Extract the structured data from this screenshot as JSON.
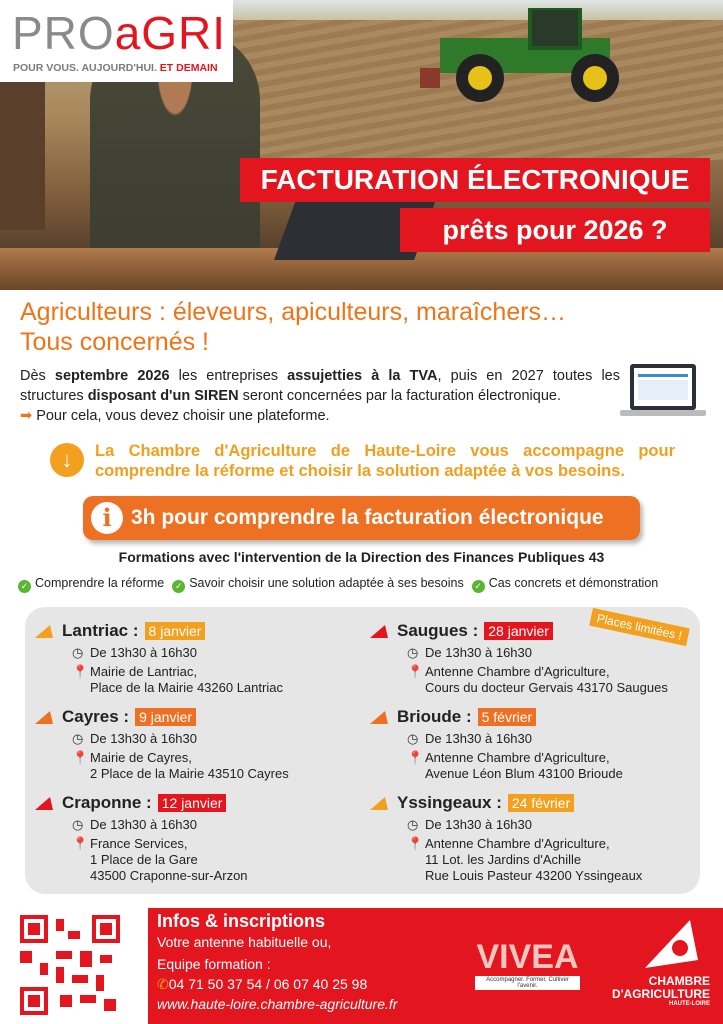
{
  "logo": {
    "brand_gray": "PRO",
    "brand_red": "aGRI",
    "tagline_gray": "POUR VOUS. AUJOURD'HUI.",
    "tagline_red": "ET DEMAIN"
  },
  "banner": {
    "line1": "FACTURATION ÉLECTRONIQUE",
    "line2": "prêts pour 2026 ?"
  },
  "heading": {
    "line1": "Agriculteurs : éleveurs, apiculteurs, maraîchers…",
    "line2": "Tous concernés !"
  },
  "intro": {
    "p1": "Dès ",
    "b1": "septembre 2026",
    "p2": " les entreprises ",
    "b2": "assujetties à la TVA",
    "p3": ", puis en 2027  toutes  les structures ",
    "b3": "disposant d'un SIREN",
    "p4": " seront concernées par la facturation électronique.",
    "p5": "Pour cela, vous devez choisir une plateforme."
  },
  "callout": "La Chambre d'Agriculture de Haute-Loire vous accompagne pour comprendre la réforme et choisir la solution adaptée à vos besoins.",
  "pill": "3h pour comprendre la facturation électronique",
  "formations": "Formations avec l'intervention de la Direction des Finances Publiques 43",
  "checks": [
    "Comprendre la réforme",
    "Savoir choisir une solution adaptée à ses besoins",
    "Cas concrets et démonstration"
  ],
  "places": "Places limitées !",
  "sessions": [
    {
      "town": "Lantriac :",
      "date": "8 janvier",
      "color": "#f2a01e",
      "time": "De 13h30 à 16h30",
      "addr": [
        "Mairie de Lantriac,",
        "Place de la Mairie 43260 Lantriac"
      ]
    },
    {
      "town": "Cayres :",
      "date": "9 janvier",
      "color": "#ee7022",
      "time": "De 13h30 à 16h30",
      "addr": [
        "Mairie de Cayres,",
        "2 Place de la Mairie 43510 Cayres"
      ]
    },
    {
      "town": "Craponne :",
      "date": "12 janvier",
      "color": "#e3161f",
      "time": "De 13h30 à 16h30",
      "addr": [
        "France Services,",
        "1 Place de la Gare",
        "43500 Craponne-sur-Arzon"
      ]
    },
    {
      "town": "Saugues :",
      "date": "28 janvier",
      "color": "#e3161f",
      "time": "De 13h30 à 16h30",
      "addr": [
        "Antenne Chambre d'Agriculture,",
        "Cours du docteur Gervais 43170 Saugues"
      ]
    },
    {
      "town": "Brioude :",
      "date": "5 février",
      "color": "#ee7022",
      "time": "De 13h30 à 16h30",
      "addr": [
        "Antenne Chambre d'Agriculture,",
        "Avenue Léon Blum 43100 Brioude"
      ]
    },
    {
      "town": "Yssingeaux :",
      "date": "24 février",
      "color": "#f2a01e",
      "time": "De 13h30 à 16h30",
      "addr": [
        "Antenne Chambre d'Agriculture,",
        "11 Lot. les Jardins d'Achille",
        "Rue Louis Pasteur 43200 Yssingeaux"
      ]
    }
  ],
  "footer": {
    "title": "Infos & inscriptions",
    "l1": "Votre antenne habituelle ou,",
    "l2": "Equipe formation :",
    "phone": "04 71 50 37 54  /  06 07 40 25 98",
    "web": "www.haute-loire.chambre-agriculture.fr"
  },
  "vivea": {
    "name": "VIVEA",
    "tag": "Accompagner. Former. Cultiver l'avenir."
  },
  "chambre": {
    "l1": "CHAMBRE",
    "l2": "D'AGRICULTURE",
    "l3": "HAUTE-LOIRE"
  },
  "colors": {
    "red": "#e3161f",
    "orange": "#ee7022",
    "yellow": "#f2a01e",
    "green": "#5cb531"
  }
}
